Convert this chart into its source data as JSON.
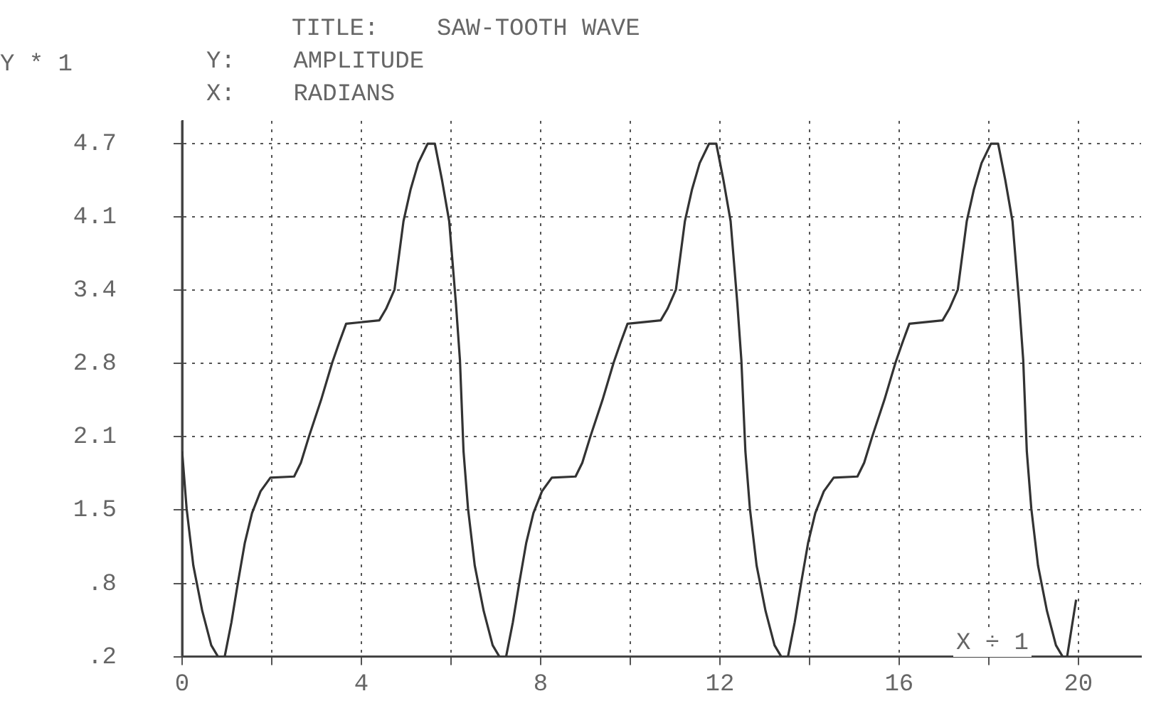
{
  "chart_data": {
    "type": "line",
    "title": "TITLE:    SAW-TOOTH WAVE",
    "ylabel": "Y:    AMPLITUDE",
    "xlabel": "X:    RADIANS",
    "annotations": [
      "Y * 1",
      "X ÷ 1"
    ],
    "x": [
      0,
      0.1,
      0.25,
      0.45,
      0.65,
      0.8,
      0.95,
      1.1,
      1.25,
      1.4,
      1.56,
      1.75,
      1.97,
      2.5,
      2.65,
      2.83,
      3.1,
      3.35,
      3.5,
      3.66,
      4.4,
      4.55,
      4.74,
      4.94,
      5.1,
      5.27,
      5.48,
      5.64,
      5.8,
      5.96,
      6.11,
      6.2,
      6.28,
      6.38,
      6.53,
      6.73,
      6.93,
      7.08,
      7.23,
      7.38,
      7.53,
      7.68,
      7.84,
      8.03,
      8.25,
      8.78,
      8.93,
      9.11,
      9.38,
      9.63,
      9.78,
      9.94,
      10.68,
      10.83,
      11.02,
      11.22,
      11.38,
      11.55,
      11.76,
      11.92,
      12.08,
      12.24,
      12.39,
      12.48,
      12.57,
      12.67,
      12.82,
      13.02,
      13.22,
      13.37,
      13.52,
      13.67,
      13.82,
      13.97,
      14.13,
      14.32,
      14.54,
      15.07,
      15.22,
      15.4,
      15.67,
      15.92,
      16.07,
      16.23,
      16.97,
      17.12,
      17.31,
      17.51,
      17.67,
      17.84,
      18.05,
      18.21,
      18.37,
      18.53,
      18.68,
      18.77,
      18.85,
      18.95,
      19.1,
      19.3,
      19.5,
      19.65,
      19.75,
      19.85,
      19.95
    ],
    "values": [
      2.0,
      1.5,
      1.0,
      0.6,
      0.3,
      0.2,
      0.2,
      0.5,
      0.86,
      1.2,
      1.46,
      1.65,
      1.77,
      1.78,
      1.9,
      2.13,
      2.45,
      2.78,
      2.95,
      3.12,
      3.15,
      3.25,
      3.42,
      4.02,
      4.3,
      4.53,
      4.7,
      4.7,
      4.38,
      4.02,
      3.3,
      2.8,
      2.0,
      1.5,
      1.0,
      0.6,
      0.3,
      0.2,
      0.2,
      0.5,
      0.86,
      1.2,
      1.46,
      1.65,
      1.77,
      1.78,
      1.9,
      2.13,
      2.45,
      2.78,
      2.95,
      3.12,
      3.15,
      3.25,
      3.42,
      4.02,
      4.3,
      4.53,
      4.7,
      4.7,
      4.38,
      4.02,
      3.3,
      2.8,
      2.0,
      1.5,
      1.0,
      0.6,
      0.3,
      0.2,
      0.2,
      0.5,
      0.86,
      1.2,
      1.46,
      1.65,
      1.77,
      1.78,
      1.9,
      2.13,
      2.45,
      2.78,
      2.95,
      3.12,
      3.15,
      3.25,
      3.42,
      4.02,
      4.3,
      4.53,
      4.7,
      4.7,
      4.38,
      4.02,
      3.3,
      2.8,
      2.0,
      1.5,
      1.0,
      0.6,
      0.3,
      0.2,
      0.2,
      0.45,
      0.7
    ],
    "color": "#333333",
    "xlim": [
      0,
      21.4
    ],
    "ylim": [
      0.2,
      4.9
    ],
    "xticks": [
      0,
      {
        "value": 2,
        "label": null
      },
      4,
      {
        "value": 6,
        "label": null
      },
      8,
      {
        "value": 10,
        "label": null
      },
      12,
      {
        "value": 14,
        "label": null
      },
      16,
      {
        "value": 18,
        "label": null
      },
      20
    ],
    "yticks": [
      {
        "value": 0.2,
        "label": ".2"
      },
      {
        "value": 0.843,
        "label": ".8"
      },
      {
        "value": 1.486,
        "label": "1.5"
      },
      {
        "value": 2.129,
        "label": "2.1"
      },
      {
        "value": 2.771,
        "label": "2.8"
      },
      {
        "value": 3.414,
        "label": "3.4"
      },
      {
        "value": 4.057,
        "label": "4.1"
      },
      {
        "value": 4.7,
        "label": "4.7"
      }
    ],
    "grid": true,
    "legend": false,
    "line_style": "solid",
    "marker": "none"
  }
}
